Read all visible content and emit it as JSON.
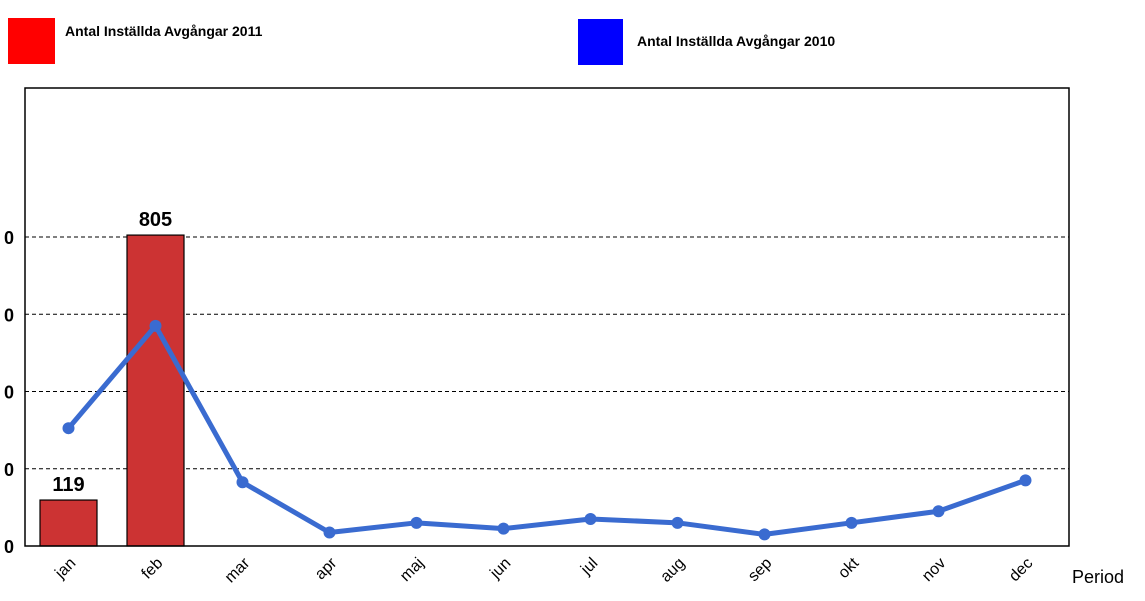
{
  "chart_data": {
    "type": "bar",
    "categories": [
      "jan",
      "feb",
      "mar",
      "apr",
      "maj",
      "jun",
      "jul",
      "aug",
      "sep",
      "okt",
      "nov",
      "dec"
    ],
    "series": [
      {
        "name": "Antal Inställda Avgångar 2011",
        "type": "bar",
        "color": "#cc3333",
        "legend_color": "#ff0000",
        "values": [
          119,
          805,
          null,
          null,
          null,
          null,
          null,
          null,
          null,
          null,
          null,
          null
        ],
        "data_labels": [
          "119",
          "805",
          "",
          "",
          "",
          "",
          "",
          "",
          "",
          "",
          "",
          ""
        ]
      },
      {
        "name": "Antal Inställda Avgångar 2010",
        "type": "line",
        "color": "#3a6bd0",
        "legend_color": "#0000ff",
        "values": [
          305,
          570,
          165,
          35,
          60,
          45,
          70,
          60,
          30,
          60,
          90,
          170
        ]
      }
    ],
    "xlabel": "Period",
    "ylabel": "",
    "ylim": [
      0,
      1000
    ],
    "yticks": [
      0,
      200,
      400,
      600,
      800
    ],
    "ytick_labels": [
      "0",
      "0",
      "0",
      "0",
      "0"
    ],
    "grid": true,
    "legend": "top"
  }
}
